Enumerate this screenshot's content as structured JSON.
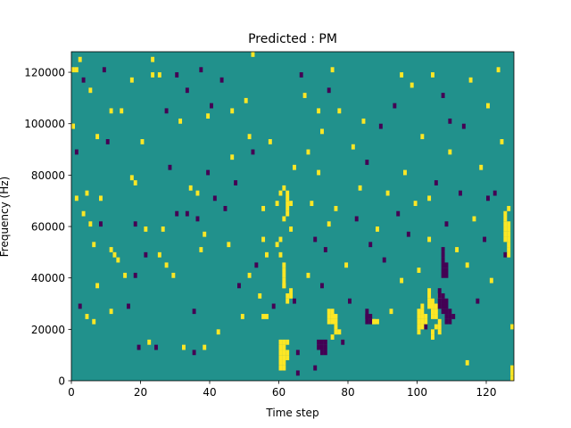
{
  "chart_data": {
    "type": "heatmap",
    "title": "Predicted : PM",
    "xlabel": "Time step",
    "ylabel": "Frequency (Hz)",
    "xlim": [
      0,
      128
    ],
    "ylim": [
      0,
      128000
    ],
    "xticks": [
      0,
      20,
      40,
      60,
      80,
      100,
      120
    ],
    "yticks": [
      0,
      20000,
      40000,
      60000,
      80000,
      100000,
      120000
    ],
    "xtick_labels": [
      "0",
      "20",
      "40",
      "60",
      "80",
      "100",
      "120"
    ],
    "ytick_labels": [
      "0",
      "20000",
      "40000",
      "60000",
      "80000",
      "100000",
      "120000"
    ],
    "grid": false,
    "rows": 64,
    "cols": 128,
    "levels": [
      -1,
      0,
      1
    ],
    "colors": {
      "-1": "#440154",
      "0": "#21918c",
      "1": "#fde725"
    },
    "background_value": 0,
    "cells": [
      [
        0,
        60,
        1
      ],
      [
        0,
        49,
        1
      ],
      [
        1,
        60,
        1
      ],
      [
        1,
        44,
        -1
      ],
      [
        1,
        35,
        1
      ],
      [
        2,
        62,
        1
      ],
      [
        2,
        14,
        -1
      ],
      [
        3,
        58,
        -1
      ],
      [
        3,
        32,
        1
      ],
      [
        4,
        12,
        1
      ],
      [
        4,
        36,
        1
      ],
      [
        5,
        30,
        1
      ],
      [
        5,
        56,
        1
      ],
      [
        6,
        26,
        1
      ],
      [
        6,
        11,
        1
      ],
      [
        7,
        47,
        1
      ],
      [
        7,
        18,
        1
      ],
      [
        8,
        30,
        -1
      ],
      [
        8,
        35,
        1
      ],
      [
        9,
        60,
        -1
      ],
      [
        10,
        46,
        -1
      ],
      [
        11,
        25,
        1
      ],
      [
        11,
        13,
        1
      ],
      [
        11,
        52,
        1
      ],
      [
        12,
        24,
        1
      ],
      [
        13,
        23,
        1
      ],
      [
        14,
        52,
        1
      ],
      [
        15,
        20,
        1
      ],
      [
        16,
        14,
        -1
      ],
      [
        17,
        58,
        1
      ],
      [
        18,
        38,
        1
      ],
      [
        18,
        30,
        -1
      ],
      [
        18,
        20,
        -1
      ],
      [
        19,
        6,
        -1
      ],
      [
        20,
        46,
        1
      ],
      [
        21,
        24,
        -1
      ],
      [
        21,
        29,
        1
      ],
      [
        22,
        7,
        1
      ],
      [
        23,
        62,
        1
      ],
      [
        23,
        59,
        1
      ],
      [
        24,
        6,
        -1
      ],
      [
        25,
        24,
        1
      ],
      [
        25,
        59,
        1
      ],
      [
        26,
        29,
        1
      ],
      [
        27,
        22,
        1
      ],
      [
        27,
        52,
        -1
      ],
      [
        28,
        41,
        -1
      ],
      [
        29,
        20,
        1
      ],
      [
        30,
        32,
        -1
      ],
      [
        30,
        59,
        -1
      ],
      [
        31,
        50,
        1
      ],
      [
        32,
        6,
        1
      ],
      [
        33,
        56,
        -1
      ],
      [
        33,
        32,
        -1
      ],
      [
        34,
        37,
        1
      ],
      [
        35,
        13,
        -1
      ],
      [
        35,
        5,
        -1
      ],
      [
        36,
        31,
        -1
      ],
      [
        36,
        36,
        1
      ],
      [
        37,
        25,
        1
      ],
      [
        37,
        60,
        -1
      ],
      [
        38,
        28,
        1
      ],
      [
        38,
        6,
        1
      ],
      [
        39,
        40,
        -1
      ],
      [
        39,
        51,
        1
      ],
      [
        40,
        53,
        -1
      ],
      [
        41,
        35,
        -1
      ],
      [
        42,
        9,
        1
      ],
      [
        43,
        58,
        -1
      ],
      [
        44,
        33,
        -1
      ],
      [
        45,
        26,
        1
      ],
      [
        46,
        43,
        1
      ],
      [
        46,
        52,
        1
      ],
      [
        47,
        38,
        -1
      ],
      [
        48,
        18,
        -1
      ],
      [
        49,
        12,
        1
      ],
      [
        50,
        54,
        1
      ],
      [
        51,
        47,
        1
      ],
      [
        51,
        20,
        1
      ],
      [
        52,
        63,
        1
      ],
      [
        53,
        22,
        -1
      ],
      [
        54,
        16,
        1
      ],
      [
        55,
        33,
        1
      ],
      [
        55,
        27,
        1
      ],
      [
        56,
        24,
        1
      ],
      [
        57,
        46,
        1
      ],
      [
        58,
        14,
        -1
      ],
      [
        59,
        26,
        1
      ],
      [
        60,
        27,
        1
      ],
      [
        60,
        24,
        1
      ],
      [
        61,
        18,
        1
      ],
      [
        61,
        31,
        1
      ],
      [
        62,
        7,
        1
      ],
      [
        63,
        29,
        1
      ],
      [
        64,
        15,
        -1
      ],
      [
        64,
        41,
        1
      ],
      [
        65,
        5,
        -1
      ],
      [
        65,
        1,
        -1
      ],
      [
        66,
        59,
        -1
      ],
      [
        67,
        55,
        1
      ],
      [
        68,
        44,
        1
      ],
      [
        68,
        20,
        1
      ],
      [
        69,
        34,
        1
      ],
      [
        70,
        27,
        -1
      ],
      [
        71,
        40,
        1
      ],
      [
        72,
        48,
        1
      ],
      [
        72,
        18,
        -1
      ],
      [
        73,
        25,
        -1
      ],
      [
        74,
        30,
        1
      ],
      [
        74,
        56,
        -1
      ],
      [
        75,
        60,
        1
      ],
      [
        76,
        33,
        1
      ],
      [
        77,
        52,
        1
      ],
      [
        78,
        7,
        -1
      ],
      [
        79,
        22,
        1
      ],
      [
        80,
        15,
        -1
      ],
      [
        81,
        45,
        1
      ],
      [
        82,
        31,
        -1
      ],
      [
        83,
        37,
        1
      ],
      [
        84,
        50,
        1
      ],
      [
        85,
        42,
        -1
      ],
      [
        86,
        26,
        -1
      ],
      [
        87,
        11,
        1
      ],
      [
        88,
        29,
        1
      ],
      [
        89,
        49,
        -1
      ],
      [
        90,
        23,
        -1
      ],
      [
        91,
        36,
        1
      ],
      [
        92,
        13,
        1
      ],
      [
        93,
        53,
        -1
      ],
      [
        94,
        32,
        -1
      ],
      [
        95,
        19,
        1
      ],
      [
        96,
        40,
        1
      ],
      [
        97,
        28,
        -1
      ],
      [
        98,
        57,
        1
      ],
      [
        99,
        34,
        1
      ],
      [
        100,
        21,
        1
      ],
      [
        101,
        47,
        1
      ],
      [
        102,
        10,
        -1
      ],
      [
        103,
        27,
        1
      ],
      [
        104,
        59,
        1
      ],
      [
        105,
        38,
        -1
      ],
      [
        106,
        16,
        1
      ],
      [
        107,
        55,
        -1
      ],
      [
        108,
        30,
        -1
      ],
      [
        109,
        44,
        1
      ],
      [
        110,
        12,
        -1
      ],
      [
        111,
        25,
        1
      ],
      [
        112,
        36,
        -1
      ],
      [
        113,
        49,
        -1
      ],
      [
        114,
        22,
        1
      ],
      [
        115,
        58,
        1
      ],
      [
        116,
        31,
        1
      ],
      [
        117,
        15,
        -1
      ],
      [
        118,
        41,
        1
      ],
      [
        119,
        27,
        -1
      ],
      [
        120,
        53,
        1
      ],
      [
        121,
        19,
        1
      ],
      [
        122,
        36,
        -1
      ],
      [
        123,
        60,
        1
      ],
      [
        124,
        46,
        1
      ],
      [
        125,
        24,
        -1
      ],
      [
        126,
        33,
        1
      ],
      [
        127,
        10,
        1
      ],
      [
        0,
        49,
        1
      ],
      [
        17,
        39,
        1
      ],
      [
        52,
        44,
        -1
      ],
      [
        70,
        2,
        -1
      ],
      [
        71,
        52,
        1
      ],
      [
        85,
        12,
        -1
      ],
      [
        95,
        59,
        1
      ],
      [
        103,
        35,
        1
      ],
      [
        109,
        50,
        -1
      ],
      [
        114,
        3,
        1
      ],
      [
        120,
        35,
        -1
      ],
      [
        60,
        7,
        1
      ],
      [
        60,
        6,
        1
      ],
      [
        60,
        5,
        1
      ],
      [
        60,
        4,
        1
      ],
      [
        61,
        7,
        1
      ],
      [
        61,
        6,
        1
      ],
      [
        61,
        5,
        1
      ],
      [
        61,
        4,
        1
      ],
      [
        62,
        5,
        1
      ],
      [
        62,
        4,
        1
      ],
      [
        61,
        3,
        1
      ],
      [
        61,
        2,
        1
      ],
      [
        60,
        3,
        1
      ],
      [
        60,
        2,
        1
      ],
      [
        61,
        22,
        1
      ],
      [
        61,
        21,
        1
      ],
      [
        61,
        20,
        1
      ],
      [
        61,
        19,
        1
      ],
      [
        61,
        18,
        1
      ],
      [
        62,
        16,
        1
      ],
      [
        62,
        15,
        1
      ],
      [
        63,
        17,
        1
      ],
      [
        63,
        16,
        1
      ],
      [
        72,
        7,
        -1
      ],
      [
        72,
        6,
        -1
      ],
      [
        72,
        5,
        -1
      ],
      [
        73,
        7,
        -1
      ],
      [
        73,
        6,
        -1
      ],
      [
        73,
        5,
        -1
      ],
      [
        71,
        7,
        -1
      ],
      [
        71,
        6,
        -1
      ],
      [
        74,
        13,
        1
      ],
      [
        74,
        12,
        1
      ],
      [
        74,
        11,
        1
      ],
      [
        75,
        13,
        1
      ],
      [
        75,
        12,
        1
      ],
      [
        75,
        11,
        1
      ],
      [
        76,
        12,
        1
      ],
      [
        76,
        11,
        1
      ],
      [
        76,
        10,
        1
      ],
      [
        85,
        13,
        -1
      ],
      [
        85,
        12,
        -1
      ],
      [
        85,
        11,
        -1
      ],
      [
        86,
        12,
        -1
      ],
      [
        86,
        11,
        -1
      ],
      [
        87,
        11,
        1
      ],
      [
        88,
        11,
        1
      ],
      [
        100,
        13,
        1
      ],
      [
        100,
        12,
        1
      ],
      [
        100,
        11,
        1
      ],
      [
        100,
        10,
        1
      ],
      [
        100,
        9,
        1
      ],
      [
        101,
        14,
        1
      ],
      [
        101,
        13,
        1
      ],
      [
        101,
        12,
        1
      ],
      [
        101,
        11,
        1
      ],
      [
        101,
        10,
        1
      ],
      [
        102,
        12,
        1
      ],
      [
        102,
        11,
        1
      ],
      [
        103,
        17,
        1
      ],
      [
        103,
        16,
        1
      ],
      [
        103,
        15,
        1
      ],
      [
        103,
        14,
        1
      ],
      [
        104,
        15,
        1
      ],
      [
        104,
        14,
        1
      ],
      [
        104,
        13,
        1
      ],
      [
        104,
        12,
        1
      ],
      [
        105,
        14,
        1
      ],
      [
        105,
        13,
        1
      ],
      [
        105,
        12,
        1
      ],
      [
        106,
        11,
        1
      ],
      [
        106,
        10,
        1
      ],
      [
        106,
        17,
        -1
      ],
      [
        106,
        16,
        -1
      ],
      [
        106,
        15,
        -1
      ],
      [
        106,
        14,
        -1
      ],
      [
        107,
        16,
        -1
      ],
      [
        107,
        15,
        -1
      ],
      [
        107,
        14,
        -1
      ],
      [
        107,
        13,
        -1
      ],
      [
        108,
        15,
        -1
      ],
      [
        108,
        14,
        -1
      ],
      [
        108,
        13,
        -1
      ],
      [
        108,
        12,
        -1
      ],
      [
        108,
        11,
        -1
      ],
      [
        109,
        13,
        -1
      ],
      [
        109,
        12,
        -1
      ],
      [
        109,
        11,
        -1
      ],
      [
        107,
        25,
        -1
      ],
      [
        107,
        24,
        -1
      ],
      [
        107,
        23,
        -1
      ],
      [
        107,
        22,
        -1
      ],
      [
        107,
        21,
        -1
      ],
      [
        107,
        20,
        -1
      ],
      [
        108,
        22,
        -1
      ],
      [
        108,
        21,
        -1
      ],
      [
        108,
        20,
        -1
      ],
      [
        104,
        8,
        1
      ],
      [
        104,
        9,
        1
      ],
      [
        105,
        10,
        1
      ],
      [
        106,
        9,
        1
      ],
      [
        125,
        32,
        1
      ],
      [
        125,
        31,
        1
      ],
      [
        125,
        30,
        1
      ],
      [
        125,
        29,
        1
      ],
      [
        125,
        28,
        1
      ],
      [
        125,
        27,
        1
      ],
      [
        126,
        30,
        1
      ],
      [
        126,
        29,
        1
      ],
      [
        126,
        28,
        1
      ],
      [
        126,
        27,
        1
      ],
      [
        126,
        26,
        1
      ],
      [
        126,
        25,
        1
      ],
      [
        126,
        24,
        1
      ],
      [
        127,
        2,
        1
      ],
      [
        127,
        1,
        1
      ],
      [
        127,
        0,
        1
      ],
      [
        75,
        8,
        1
      ],
      [
        76,
        9,
        1
      ],
      [
        77,
        9,
        1
      ],
      [
        55,
        12,
        1
      ],
      [
        56,
        12,
        1
      ],
      [
        62,
        32,
        1
      ],
      [
        62,
        33,
        1
      ],
      [
        62,
        34,
        1
      ],
      [
        62,
        35,
        1
      ],
      [
        62,
        36,
        1
      ],
      [
        63,
        34,
        1
      ],
      [
        61,
        37,
        1
      ],
      [
        60,
        36,
        1
      ],
      [
        59,
        34,
        1
      ]
    ]
  }
}
